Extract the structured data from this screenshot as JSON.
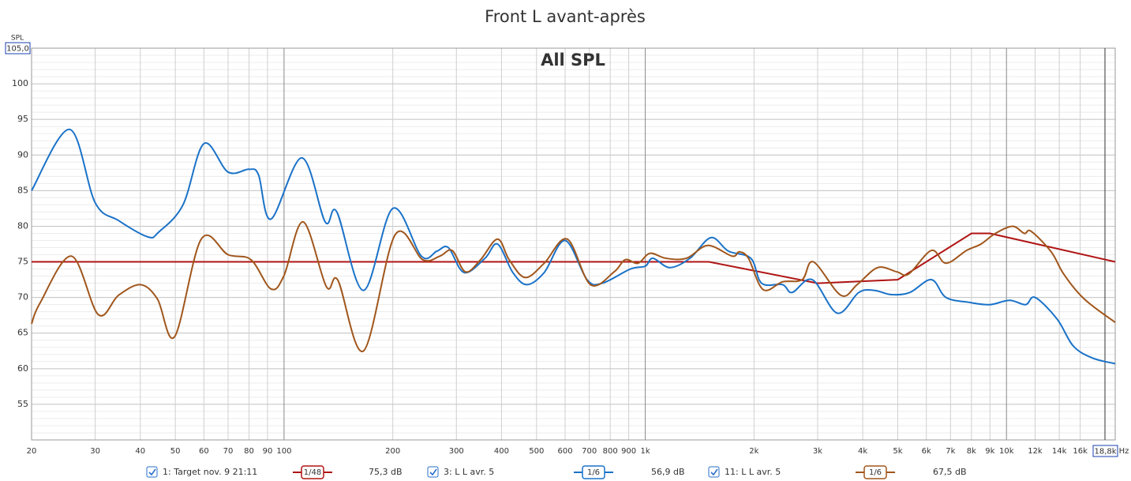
{
  "chart_data": {
    "type": "line",
    "title": "Front L avant-après",
    "annotation": "All SPL",
    "y_label": "SPL",
    "x_unit": "Hz",
    "y_cursor": "105,0",
    "x_cursor": "18,8k",
    "xlog": true,
    "grid": true,
    "minor_grid": true,
    "xlim": [
      20,
      20000
    ],
    "ylim": [
      50,
      105
    ],
    "yticks": [
      55,
      60,
      65,
      70,
      75,
      80,
      85,
      90,
      95,
      100
    ],
    "xticks": [
      20,
      30,
      40,
      50,
      60,
      70,
      80,
      90,
      100,
      200,
      300,
      400,
      500,
      600,
      700,
      800,
      900,
      {
        "value": 1000,
        "label": "1k"
      },
      {
        "value": 2000,
        "label": "2k"
      },
      {
        "value": 3000,
        "label": "3k"
      },
      {
        "value": 4000,
        "label": "4k"
      },
      {
        "value": 5000,
        "label": "5k"
      },
      {
        "value": 6000,
        "label": "6k"
      },
      {
        "value": 7000,
        "label": "7k"
      },
      {
        "value": 8000,
        "label": "8k"
      },
      {
        "value": 9000,
        "label": "9k"
      },
      {
        "value": 10000,
        "label": "10k"
      },
      {
        "value": 12000,
        "label": "12k"
      },
      {
        "value": 14000,
        "label": "14k"
      },
      {
        "value": 16000,
        "label": "16k"
      }
    ],
    "series": [
      {
        "name": "1: Target nov. 9 21:11",
        "smoothing": "1/48",
        "level": "75,3 dB",
        "color": "#b01414",
        "x": [
          20,
          1500,
          3000,
          5000,
          8000,
          9000,
          20000
        ],
        "values": [
          75,
          75,
          72,
          72.5,
          79,
          79,
          75
        ]
      },
      {
        "name": "3: L L avr. 5",
        "smoothing": "1/6",
        "level": "56,9 dB",
        "color": "#1a72c8",
        "x": [
          20,
          25.5,
          30,
          34.8,
          42,
          45,
          52.5,
          60,
          70,
          80,
          85,
          92,
          112,
          130,
          140,
          166,
          200,
          240,
          265,
          285,
          315,
          360,
          390,
          430,
          470,
          525,
          600,
          690,
          760,
          910,
          1000,
          1050,
          1170,
          1330,
          1520,
          1700,
          1960,
          2100,
          2400,
          2550,
          2900,
          3400,
          3900,
          4300,
          4800,
          5400,
          6200,
          6800,
          7900,
          9000,
          10200,
          11300,
          12000,
          13800,
          15300,
          17300,
          20000
        ],
        "values": [
          85,
          93.6,
          83.3,
          80.8,
          78.5,
          79.2,
          83,
          91.6,
          87.6,
          88,
          87.2,
          81,
          89.6,
          80.6,
          82,
          71,
          82.5,
          75.8,
          76.5,
          77,
          73.5,
          75.5,
          77.5,
          73.5,
          71.8,
          73.5,
          78,
          72.5,
          72,
          74,
          74.4,
          75.5,
          74.2,
          75.5,
          78.4,
          76.5,
          75.5,
          72,
          71.8,
          70.7,
          72.5,
          67.8,
          70.7,
          71,
          70.4,
          70.7,
          72.5,
          70,
          69.3,
          69,
          69.6,
          69,
          70,
          67,
          63.2,
          61.5,
          60.7
        ]
      },
      {
        "name": "11: L L avr. 5",
        "smoothing": "1/6",
        "level": "67,5 dB",
        "color": "#a0561c",
        "x": [
          20,
          21.1,
          25.8,
          30.6,
          34.8,
          40,
          44.6,
          49.8,
          59,
          70,
          81,
          92,
          100,
          113,
          131,
          141,
          166,
          203,
          242,
          270,
          292,
          318,
          350,
          390,
          420,
          465,
          525,
          608,
          705,
          820,
          880,
          955,
          1030,
          1140,
          1300,
          1490,
          1740,
          1820,
          1930,
          2120,
          2400,
          2720,
          2920,
          3480,
          3860,
          4400,
          4970,
          5360,
          6200,
          6800,
          7750,
          8500,
          9320,
          10400,
          11200,
          11700,
          13300,
          14400,
          16400,
          20000
        ],
        "values": [
          66.3,
          69.2,
          75.8,
          67.6,
          70.3,
          71.8,
          69.8,
          64.5,
          78.2,
          76,
          75.3,
          71.2,
          73.1,
          80.6,
          71.5,
          72.4,
          62.5,
          78.8,
          75.3,
          75.8,
          76.6,
          73.6,
          75.3,
          78.2,
          75.3,
          72.8,
          74.8,
          78.2,
          71.8,
          73.6,
          75.3,
          74.8,
          76.2,
          75.5,
          75.5,
          77.3,
          75.8,
          76.4,
          75.5,
          71.1,
          72.2,
          72.5,
          75,
          70.3,
          71.8,
          74.2,
          73.6,
          73.3,
          76.6,
          74.8,
          76.6,
          77.5,
          79,
          80,
          79,
          79.3,
          76.4,
          73.3,
          69.8,
          66.5
        ]
      }
    ]
  }
}
